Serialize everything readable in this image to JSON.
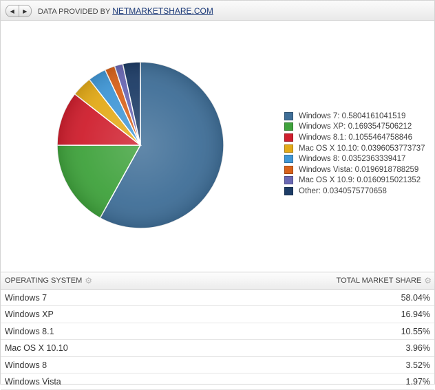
{
  "header": {
    "nav_prev_icon": "triangle-left",
    "nav_next_icon": "triangle-right",
    "provided_prefix": "DATA PROVIDED BY",
    "provider_link": "NETMARKETSHARE.COM"
  },
  "chart_data": {
    "type": "pie",
    "labels": [
      "Windows 7",
      "Windows XP",
      "Windows 8.1",
      "Mac OS X 10.10",
      "Windows 8",
      "Windows Vista",
      "Mac OS X 10.9",
      "Other"
    ],
    "values": [
      0.5804161041519,
      0.1693547506212,
      0.1055464758846,
      0.0396053773737,
      0.0352363339417,
      0.0196918788259,
      0.0160915021352,
      0.0340575770658
    ],
    "legend_labels": [
      "Windows 7: 0.5804161041519",
      "Windows XP: 0.1693547506212",
      "Windows 8.1: 0.1055464758846",
      "Mac OS X 10.10: 0.0396053773737",
      "Windows 8: 0.0352363339417",
      "Windows Vista: 0.0196918788259",
      "Mac OS X 10.9: 0.0160915021352",
      "Other: 0.0340575770658"
    ],
    "colors": [
      "#3f6e97",
      "#3fa23c",
      "#cf1f2e",
      "#e3aa18",
      "#4097d6",
      "#d8621b",
      "#6a68b4",
      "#1d3c66"
    ],
    "legend_position": "right",
    "start_angle_deg": 0,
    "direction": "clockwise"
  },
  "table": {
    "col1_header": "OPERATING SYSTEM",
    "col2_header": "TOTAL MARKET SHARE",
    "gear_icon": "gear",
    "rows": [
      {
        "name": "Windows 7",
        "share": "58.04%"
      },
      {
        "name": "Windows XP",
        "share": "16.94%"
      },
      {
        "name": "Windows 8.1",
        "share": "10.55%"
      },
      {
        "name": "Mac OS X 10.10",
        "share": "3.96%"
      },
      {
        "name": "Windows 8",
        "share": "3.52%"
      },
      {
        "name": "Windows Vista",
        "share": "1.97%"
      }
    ]
  }
}
